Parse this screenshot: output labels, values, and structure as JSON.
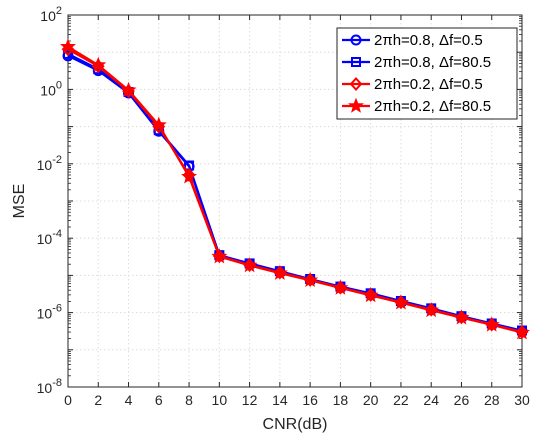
{
  "chart_data": {
    "type": "line",
    "title": "",
    "xlabel": "CNR(dB)",
    "ylabel": "MSE",
    "xlim": [
      0,
      30
    ],
    "ylim": [
      1e-08,
      100
    ],
    "yscale": "log",
    "grid": true,
    "legend_position": "top-right",
    "x_ticks": [
      0,
      2,
      4,
      6,
      8,
      10,
      12,
      14,
      16,
      18,
      20,
      22,
      24,
      26,
      28,
      30
    ],
    "x_tick_labels": [
      "0",
      "2",
      "4",
      "6",
      "8",
      "10",
      "12",
      "14",
      "16",
      "18",
      "20",
      "22",
      "24",
      "26",
      "28",
      "30"
    ],
    "y_ticks": [
      {
        "base": "10",
        "exp": "2",
        "value": 100
      },
      {
        "base": "10",
        "exp": "0",
        "value": 1
      },
      {
        "base": "10",
        "exp": "-2",
        "value": 0.01
      },
      {
        "base": "10",
        "exp": "-4",
        "value": 0.0001
      },
      {
        "base": "10",
        "exp": "-6",
        "value": 1e-06
      },
      {
        "base": "10",
        "exp": "-8",
        "value": 1e-08
      }
    ],
    "x": [
      0,
      2,
      4,
      6,
      8,
      10,
      12,
      14,
      16,
      18,
      20,
      22,
      24,
      26,
      28,
      30
    ],
    "series": [
      {
        "name": "2πh=0.8, Δf=0.5",
        "color": "#0000ff",
        "marker": "circle",
        "values": [
          8,
          3.2,
          0.8,
          0.075,
          0.0085,
          3.4e-05,
          2e-05,
          1.25e-05,
          7.8e-06,
          4.9e-06,
          3.2e-06,
          2e-06,
          1.25e-06,
          7.8e-07,
          5e-07,
          3.2e-07
        ]
      },
      {
        "name": "2πh=0.8, Δf=80.5",
        "color": "#0000ff",
        "marker": "square",
        "values": [
          9,
          3.5,
          0.85,
          0.08,
          0.009,
          3.5e-05,
          2.1e-05,
          1.3e-05,
          8e-06,
          5e-06,
          3.3e-06,
          2.05e-06,
          1.3e-06,
          8e-07,
          5.1e-07,
          3.3e-07
        ]
      },
      {
        "name": "2πh=0.2, Δf=0.5",
        "color": "#ff0000",
        "marker": "diamond",
        "values": [
          12,
          4.2,
          0.9,
          0.1,
          0.005,
          3.3e-05,
          1.9e-05,
          1.2e-05,
          7.6e-06,
          4.7e-06,
          3e-06,
          1.9e-06,
          1.2e-06,
          7.5e-07,
          4.8e-07,
          3e-07
        ]
      },
      {
        "name": "2πh=0.2, Δf=80.5",
        "color": "#ff0000",
        "marker": "star",
        "values": [
          14,
          4.5,
          0.95,
          0.11,
          0.0045,
          3.2e-05,
          1.85e-05,
          1.15e-05,
          7.4e-06,
          4.6e-06,
          2.9e-06,
          1.85e-06,
          1.15e-06,
          7.3e-07,
          4.7e-07,
          2.9e-07
        ]
      }
    ]
  }
}
